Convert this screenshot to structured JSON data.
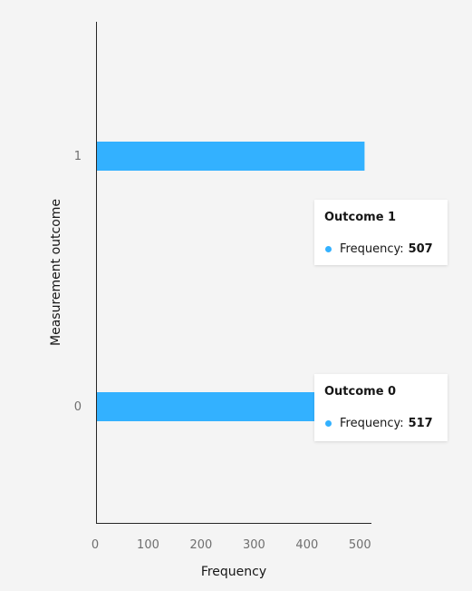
{
  "chart_data": {
    "type": "bar",
    "orientation": "horizontal",
    "categories": [
      "1",
      "0"
    ],
    "values": [
      507,
      517
    ],
    "xlabel": "Frequency",
    "ylabel": "Measurement outcome",
    "xlim": [
      0,
      520
    ],
    "xticks": [
      "0",
      "100",
      "200",
      "300",
      "400",
      "500"
    ],
    "grid": false,
    "bar_color": "#33b1ff",
    "background": "#f4f4f4"
  },
  "tooltips": [
    {
      "title": "Outcome 1",
      "metric_label": "Frequency:",
      "value": "507"
    },
    {
      "title": "Outcome 0",
      "metric_label": "Frequency:",
      "value": "517"
    }
  ]
}
